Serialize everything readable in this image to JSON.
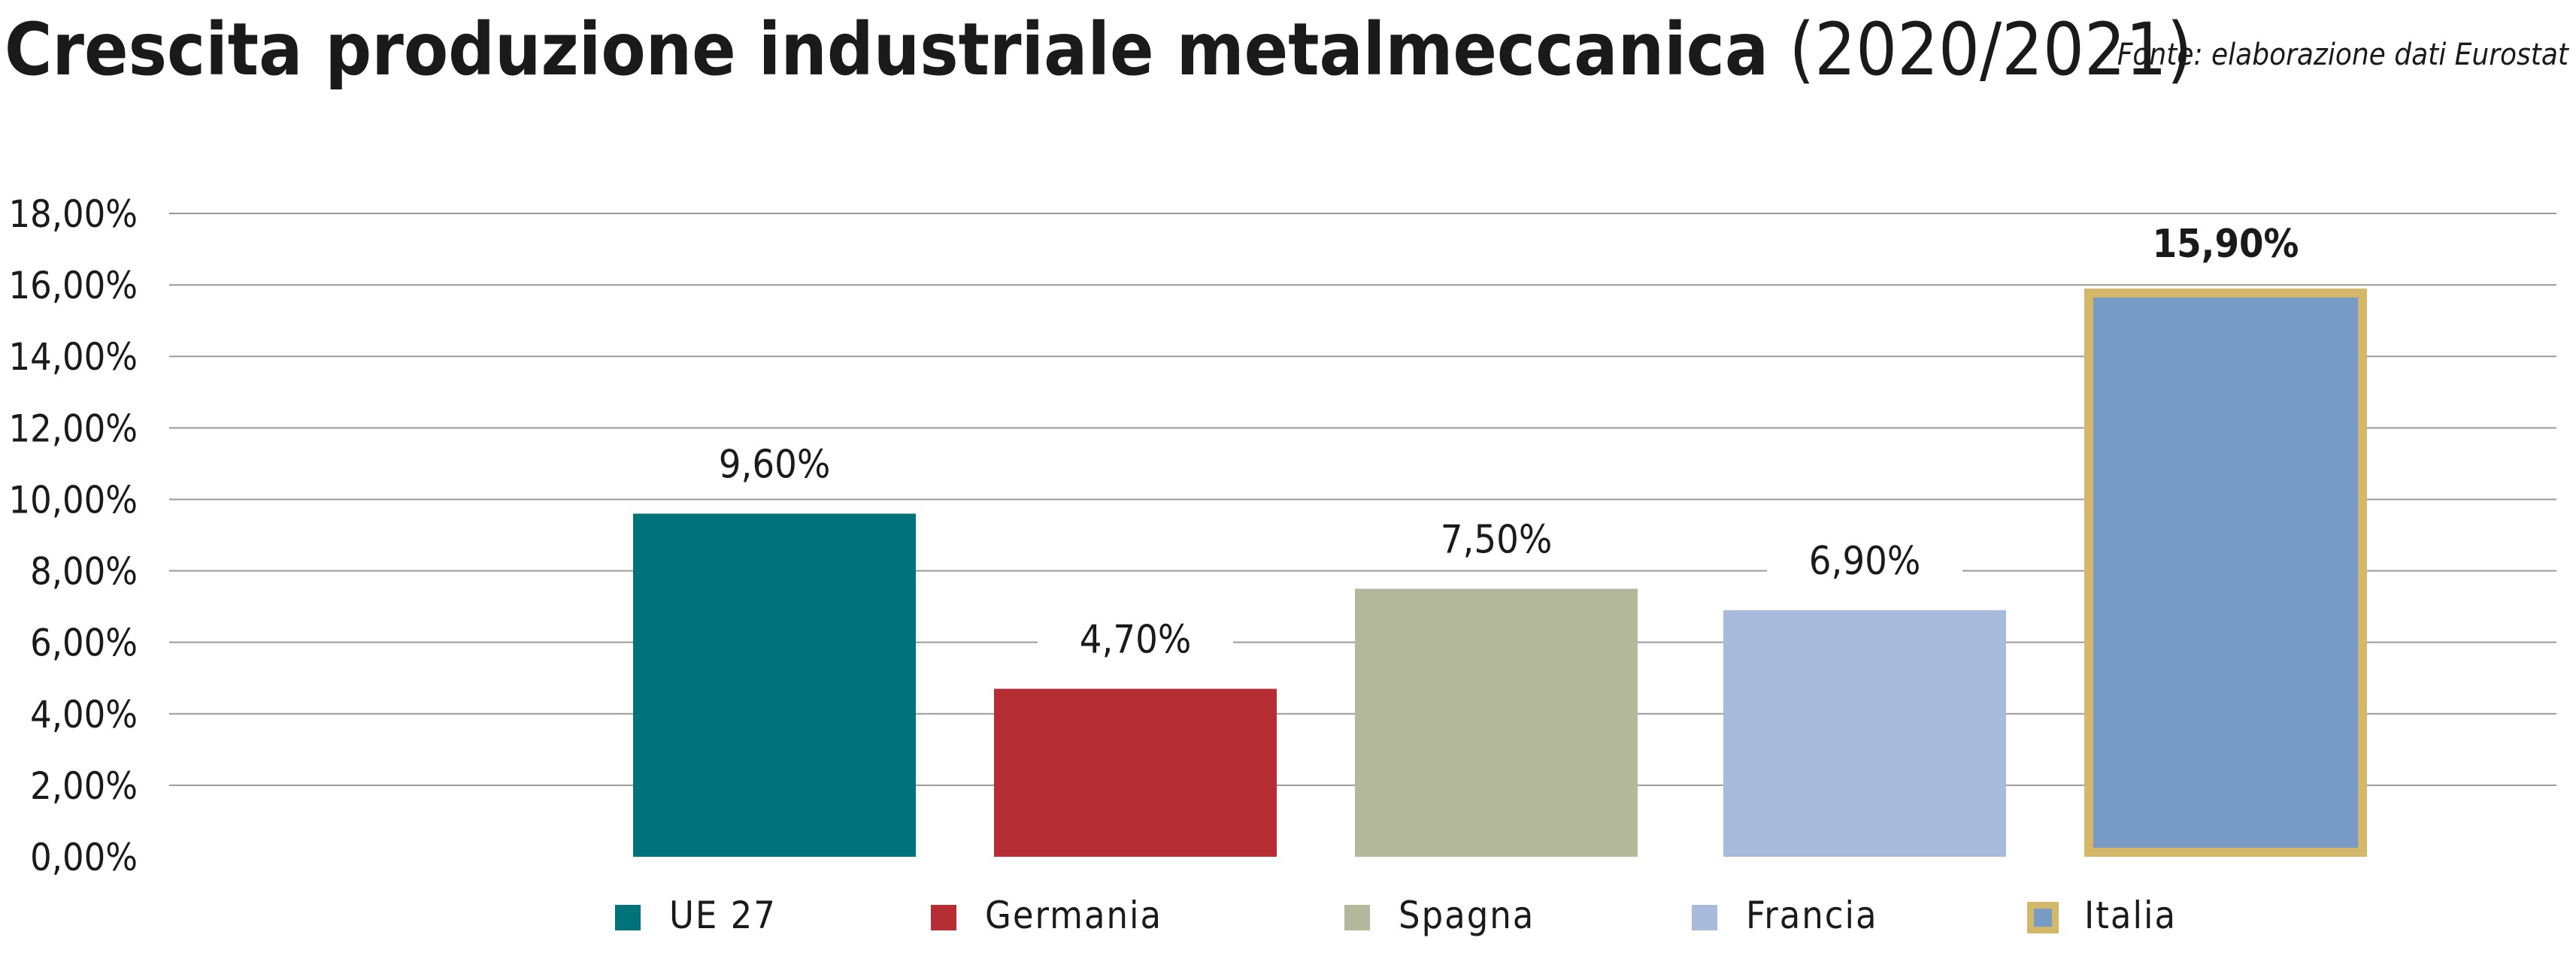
{
  "title_bold": "Crescita produzione industriale metalmeccanica",
  "title_light": "(2020/2021)",
  "source": "Fonte: elaborazione dati Eurostat",
  "chart_data": {
    "type": "bar",
    "categories": [
      "UE 27",
      "Germania",
      "Spagna",
      "Francia",
      "Italia"
    ],
    "values": [
      9.6,
      4.7,
      7.5,
      6.9,
      15.9
    ],
    "value_labels": [
      "9,60%",
      "4,70%",
      "7,50%",
      "6,90%",
      "15,90%"
    ],
    "colors": [
      "#00737A",
      "#B72D34",
      "#B3B89D",
      "#A8BBDA",
      "#789BC6"
    ],
    "highlight": {
      "category": "Italia",
      "border_color": "#D4B86A"
    },
    "yticks": [
      0,
      2,
      4,
      6,
      8,
      10,
      12,
      14,
      16,
      18
    ],
    "ytick_labels": [
      "0,00%",
      "2,00%",
      "4,00%",
      "6,00%",
      "8,00%",
      "10,00%",
      "12,00%",
      "14,00%",
      "16,00%",
      "18,00%"
    ],
    "ylim": [
      0,
      18
    ],
    "grid": true,
    "legend_position": "bottom",
    "xlabel": "",
    "ylabel": ""
  }
}
